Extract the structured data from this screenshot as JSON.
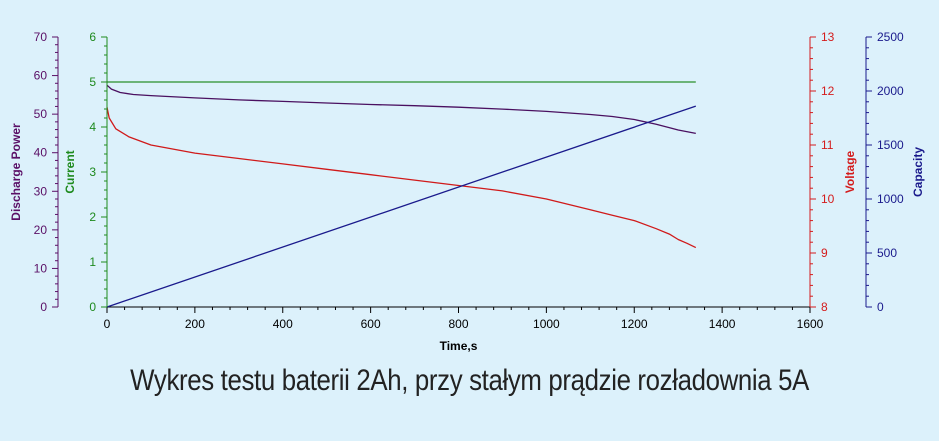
{
  "caption": "Wykres testu baterii 2Ah, przy stałym prądzie rozładownia 5A",
  "chart_data": {
    "type": "line",
    "title": "",
    "grid": false,
    "legend": "none",
    "x_axis": {
      "label": "Time,s",
      "range": [
        0,
        1600
      ],
      "ticks": [
        0,
        200,
        400,
        600,
        800,
        1000,
        1200,
        1400,
        1600
      ]
    },
    "y_axes": [
      {
        "id": "power",
        "label": "Discharge Power",
        "range": [
          0,
          70
        ],
        "ticks": [
          0,
          10,
          20,
          30,
          40,
          50,
          60,
          70
        ],
        "color": "#5a0f66",
        "side": "left"
      },
      {
        "id": "current",
        "label": "Current",
        "range": [
          0,
          6
        ],
        "ticks": [
          0,
          1,
          2,
          3,
          4,
          5,
          6
        ],
        "color": "#1e8a1e",
        "side": "left"
      },
      {
        "id": "voltage",
        "label": "Voltage",
        "range": [
          8,
          13
        ],
        "ticks": [
          8,
          9,
          10,
          11,
          12,
          13
        ],
        "color": "#d41c1c",
        "side": "right"
      },
      {
        "id": "capacity",
        "label": "Capacity",
        "range": [
          0,
          2500
        ],
        "ticks": [
          0,
          500,
          1000,
          1500,
          2000,
          2500
        ],
        "color": "#1a1a8c",
        "side": "right"
      }
    ],
    "series": [
      {
        "axis": "current",
        "color": "#2a8f2a",
        "x": [
          0,
          1340
        ],
        "y": [
          5.0,
          5.0
        ]
      },
      {
        "axis": "power",
        "color": "#4a1060",
        "x": [
          0,
          10,
          30,
          60,
          100,
          200,
          300,
          400,
          500,
          600,
          700,
          800,
          900,
          1000,
          1100,
          1150,
          1200,
          1250,
          1300,
          1340
        ],
        "y": [
          57.5,
          56.5,
          55.6,
          55.1,
          54.8,
          54.2,
          53.7,
          53.3,
          52.9,
          52.5,
          52.2,
          51.8,
          51.3,
          50.7,
          49.9,
          49.4,
          48.6,
          47.4,
          45.9,
          45.0
        ]
      },
      {
        "axis": "voltage",
        "color": "#d01a1a",
        "x": [
          0,
          5,
          20,
          50,
          100,
          200,
          300,
          400,
          500,
          600,
          700,
          800,
          900,
          1000,
          1100,
          1150,
          1200,
          1250,
          1280,
          1300,
          1320,
          1340
        ],
        "y": [
          11.7,
          11.5,
          11.3,
          11.15,
          11.0,
          10.85,
          10.75,
          10.65,
          10.55,
          10.45,
          10.35,
          10.25,
          10.15,
          10.0,
          9.8,
          9.7,
          9.6,
          9.45,
          9.35,
          9.25,
          9.18,
          9.1
        ]
      },
      {
        "axis": "capacity",
        "color": "#1a1a8c",
        "x": [
          0,
          1340
        ],
        "y": [
          0,
          1860
        ]
      }
    ]
  }
}
